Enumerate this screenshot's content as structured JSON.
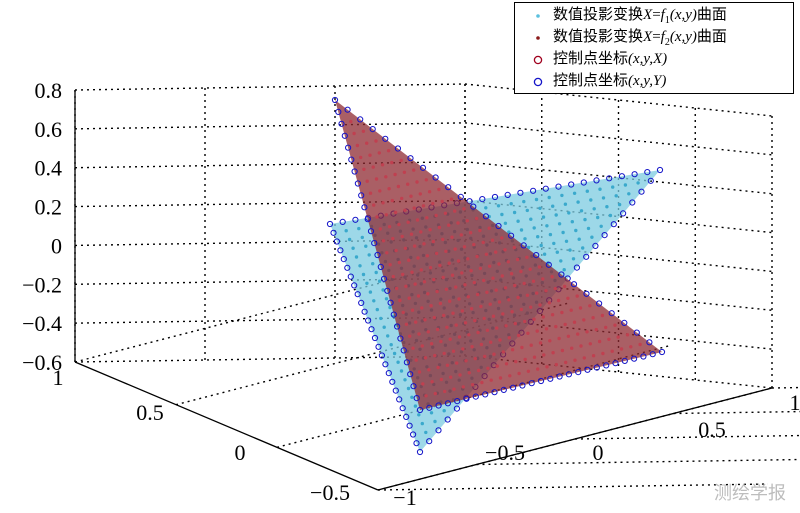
{
  "chart_data": {
    "type": "scatter3d",
    "title": "",
    "z_ticks": [
      "0.8",
      "0.6",
      "0.4",
      "0.2",
      "0",
      "−0.2",
      "−0.4",
      "−0.6"
    ],
    "x_ticks": [
      "1",
      "0.5",
      "0",
      "−0.5"
    ],
    "y_ticks": [
      "−1",
      "−0.5",
      "0",
      "0.5",
      "1"
    ],
    "zlim": [
      -0.6,
      0.8
    ],
    "xlim": [
      -0.5,
      1
    ],
    "ylim": [
      -1,
      1
    ],
    "grid": true,
    "legend_position": "top-right",
    "legend": [
      {
        "prefix": "数值投影变换",
        "var": "X",
        "eq": "=",
        "func": "f",
        "sub": "1",
        "args": "(x,y)",
        "suffix": "曲面",
        "marker": "dot",
        "color": "#5bc0de"
      },
      {
        "prefix": "数值投影变换",
        "var": "X",
        "eq": "=",
        "func": "f",
        "sub": "2",
        "args": "(x,y)",
        "suffix": "曲面",
        "marker": "dot",
        "color": "#8b1a1a"
      },
      {
        "prefix": "控制点坐标",
        "var": "",
        "eq": "",
        "func": "",
        "sub": "",
        "args": "(x,y,X)",
        "suffix": "",
        "marker": "circle",
        "color": "#a0001e"
      },
      {
        "prefix": "控制点坐标",
        "var": "",
        "eq": "",
        "func": "",
        "sub": "",
        "args": "(x,y,Y)",
        "suffix": "",
        "marker": "circle",
        "color": "#1414c8"
      }
    ],
    "series": [
      {
        "name": "数值投影变换X=f1(x,y)曲面",
        "color": "#5bc0de"
      },
      {
        "name": "数值投影变换X=f2(x,y)曲面",
        "color": "#8b1a1a"
      }
    ]
  },
  "watermark": "测绘学报"
}
